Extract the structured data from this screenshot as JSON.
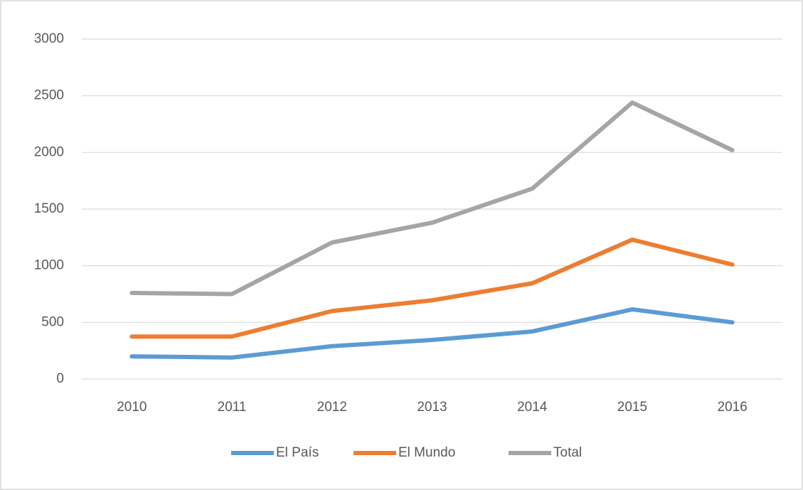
{
  "chart_data": {
    "type": "line",
    "categories": [
      "2010",
      "2011",
      "2012",
      "2013",
      "2014",
      "2015",
      "2016"
    ],
    "series": [
      {
        "name": "El País",
        "color": "#5b9bd5",
        "values": [
          200,
          190,
          290,
          345,
          420,
          615,
          500
        ]
      },
      {
        "name": "El Mundo",
        "color": "#ed7d31",
        "values": [
          375,
          375,
          600,
          695,
          845,
          1230,
          1010
        ]
      },
      {
        "name": "Total",
        "color": "#a5a5a5",
        "values": [
          760,
          750,
          1205,
          1380,
          1680,
          2440,
          2020
        ]
      }
    ],
    "ylim": [
      0,
      3000
    ],
    "yticks": [
      0,
      500,
      1000,
      1500,
      2000,
      2500,
      3000
    ],
    "grid": true,
    "legend": "bottom"
  }
}
